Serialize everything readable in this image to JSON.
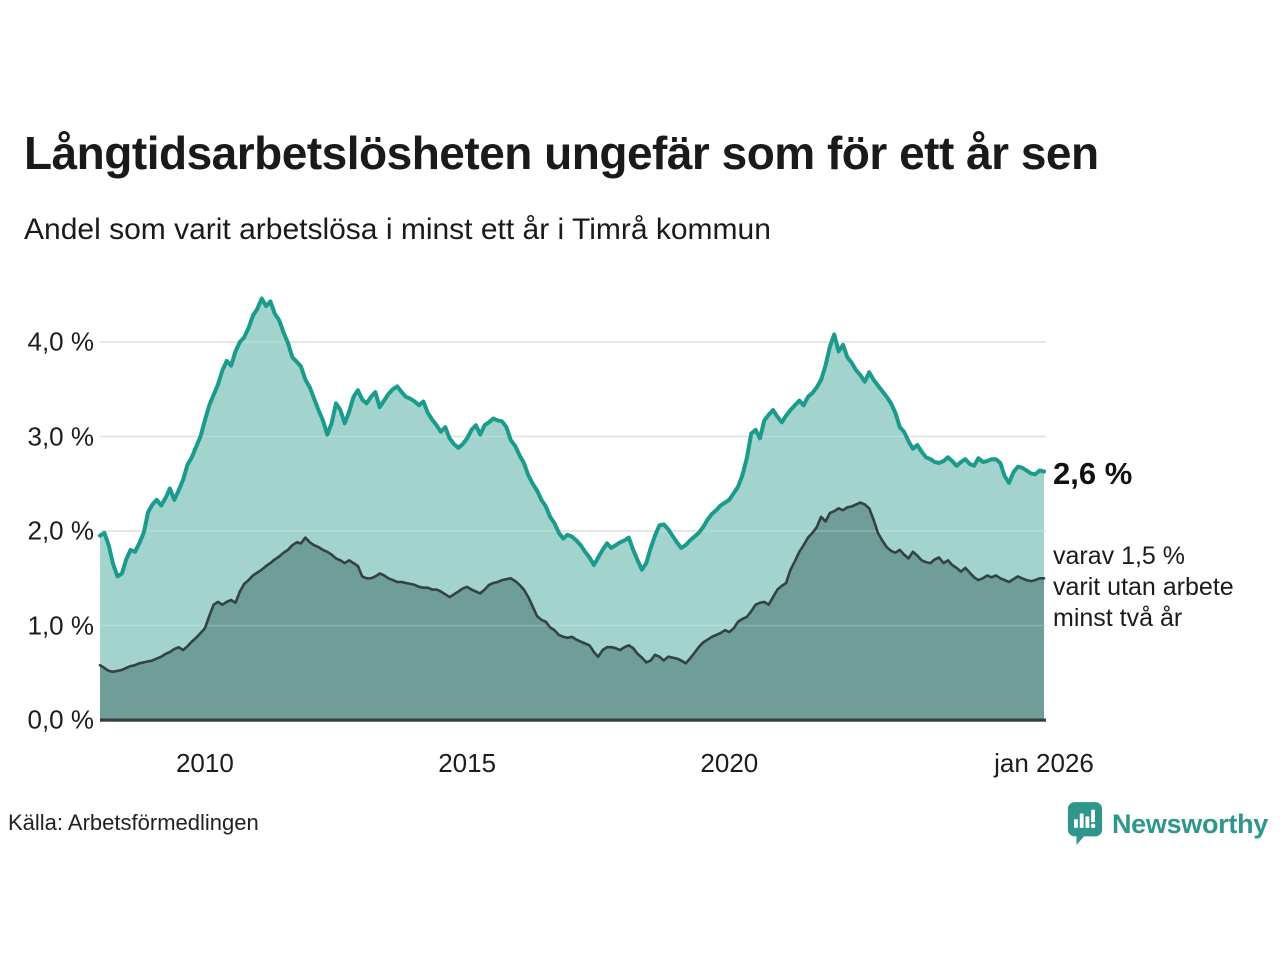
{
  "header": {
    "title": "Långtidsarbetslösheten ungefär som för ett år sen",
    "subtitle": "Andel som varit arbetslösa i minst ett år i Timrå kommun"
  },
  "chart_data": {
    "type": "area",
    "title": "Andel som varit arbetslösa i minst ett år i Timrå kommun",
    "x_start": "jan 2008",
    "x_end": "jan 2026",
    "x_resolution": "month",
    "ylim": [
      0,
      4.5
    ],
    "grid": true,
    "yticks": [
      {
        "value": 0,
        "label": "0,0 %"
      },
      {
        "value": 1,
        "label": "1,0 %"
      },
      {
        "value": 2,
        "label": "2,0 %"
      },
      {
        "value": 3,
        "label": "3,0 %"
      },
      {
        "value": 4,
        "label": "4,0 %"
      }
    ],
    "xticks": [
      {
        "month_index": 24,
        "label": "2010"
      },
      {
        "month_index": 84,
        "label": "2015"
      },
      {
        "month_index": 144,
        "label": "2020"
      },
      {
        "month_index": 216,
        "label": "jan 2026"
      }
    ],
    "series": [
      {
        "name": "Arbetslösa minst ett år",
        "line_color": "#1a9b8c",
        "fill_color": "#a2d3cc",
        "end_label": "2,6 %",
        "values": [
          1.95,
          1.98,
          1.85,
          1.65,
          1.52,
          1.55,
          1.7,
          1.8,
          1.78,
          1.87,
          1.98,
          2.2,
          2.28,
          2.33,
          2.27,
          2.35,
          2.45,
          2.33,
          2.43,
          2.54,
          2.7,
          2.78,
          2.89,
          3.0,
          3.17,
          3.33,
          3.44,
          3.55,
          3.7,
          3.8,
          3.75,
          3.9,
          4.0,
          4.05,
          4.15,
          4.28,
          4.35,
          4.46,
          4.38,
          4.43,
          4.3,
          4.23,
          4.1,
          3.99,
          3.84,
          3.79,
          3.74,
          3.6,
          3.52,
          3.4,
          3.28,
          3.17,
          3.02,
          3.14,
          3.35,
          3.28,
          3.14,
          3.26,
          3.42,
          3.49,
          3.39,
          3.35,
          3.42,
          3.47,
          3.31,
          3.38,
          3.45,
          3.5,
          3.53,
          3.47,
          3.42,
          3.4,
          3.37,
          3.33,
          3.37,
          3.25,
          3.18,
          3.12,
          3.05,
          3.1,
          2.98,
          2.92,
          2.88,
          2.92,
          2.98,
          3.07,
          3.12,
          3.02,
          3.12,
          3.15,
          3.19,
          3.17,
          3.16,
          3.1,
          2.96,
          2.9,
          2.8,
          2.72,
          2.59,
          2.5,
          2.43,
          2.33,
          2.26,
          2.15,
          2.08,
          1.98,
          1.92,
          1.96,
          1.94,
          1.9,
          1.85,
          1.78,
          1.72,
          1.64,
          1.72,
          1.8,
          1.87,
          1.82,
          1.85,
          1.88,
          1.9,
          1.93,
          1.8,
          1.69,
          1.59,
          1.66,
          1.82,
          1.95,
          2.06,
          2.07,
          2.02,
          1.95,
          1.88,
          1.82,
          1.85,
          1.9,
          1.94,
          1.98,
          2.04,
          2.12,
          2.18,
          2.22,
          2.27,
          2.3,
          2.33,
          2.4,
          2.47,
          2.59,
          2.77,
          3.03,
          3.07,
          2.98,
          3.17,
          3.23,
          3.28,
          3.21,
          3.15,
          3.22,
          3.28,
          3.33,
          3.38,
          3.33,
          3.42,
          3.46,
          3.52,
          3.6,
          3.75,
          3.95,
          4.08,
          3.9,
          3.97,
          3.84,
          3.78,
          3.7,
          3.65,
          3.58,
          3.68,
          3.6,
          3.54,
          3.48,
          3.42,
          3.35,
          3.25,
          3.1,
          3.05,
          2.95,
          2.87,
          2.91,
          2.84,
          2.78,
          2.76,
          2.73,
          2.72,
          2.74,
          2.78,
          2.74,
          2.69,
          2.73,
          2.76,
          2.71,
          2.69,
          2.77,
          2.73,
          2.74,
          2.76,
          2.76,
          2.72,
          2.58,
          2.51,
          2.62,
          2.68,
          2.67,
          2.64,
          2.61,
          2.6,
          2.64,
          2.63
        ]
      },
      {
        "name": "Utan arbete minst två år",
        "line_color": "#33433f",
        "fill_color": "#6f9e99",
        "end_label": "varav 1,5 % varit utan arbete minst två år",
        "values": [
          0.58,
          0.55,
          0.52,
          0.51,
          0.52,
          0.53,
          0.55,
          0.57,
          0.58,
          0.6,
          0.61,
          0.62,
          0.63,
          0.65,
          0.67,
          0.7,
          0.72,
          0.75,
          0.77,
          0.74,
          0.78,
          0.83,
          0.87,
          0.92,
          0.97,
          1.1,
          1.22,
          1.25,
          1.22,
          1.25,
          1.27,
          1.24,
          1.36,
          1.44,
          1.48,
          1.53,
          1.56,
          1.59,
          1.63,
          1.66,
          1.7,
          1.73,
          1.77,
          1.8,
          1.85,
          1.88,
          1.87,
          1.93,
          1.88,
          1.85,
          1.83,
          1.8,
          1.78,
          1.75,
          1.71,
          1.69,
          1.66,
          1.69,
          1.66,
          1.63,
          1.52,
          1.5,
          1.5,
          1.52,
          1.55,
          1.53,
          1.5,
          1.48,
          1.46,
          1.46,
          1.45,
          1.44,
          1.43,
          1.41,
          1.4,
          1.4,
          1.38,
          1.38,
          1.36,
          1.33,
          1.3,
          1.33,
          1.36,
          1.39,
          1.41,
          1.38,
          1.36,
          1.34,
          1.38,
          1.43,
          1.45,
          1.46,
          1.48,
          1.49,
          1.5,
          1.47,
          1.43,
          1.38,
          1.3,
          1.2,
          1.1,
          1.06,
          1.04,
          0.98,
          0.95,
          0.9,
          0.88,
          0.87,
          0.88,
          0.85,
          0.83,
          0.81,
          0.79,
          0.72,
          0.67,
          0.74,
          0.77,
          0.77,
          0.76,
          0.74,
          0.77,
          0.79,
          0.76,
          0.7,
          0.66,
          0.61,
          0.63,
          0.69,
          0.67,
          0.63,
          0.67,
          0.66,
          0.65,
          0.63,
          0.6,
          0.65,
          0.71,
          0.77,
          0.82,
          0.85,
          0.88,
          0.9,
          0.92,
          0.95,
          0.93,
          0.97,
          1.04,
          1.07,
          1.09,
          1.15,
          1.22,
          1.24,
          1.25,
          1.22,
          1.3,
          1.38,
          1.42,
          1.45,
          1.59,
          1.68,
          1.78,
          1.85,
          1.93,
          1.98,
          2.04,
          2.15,
          2.1,
          2.19,
          2.21,
          2.24,
          2.22,
          2.25,
          2.26,
          2.28,
          2.3,
          2.28,
          2.24,
          2.12,
          1.98,
          1.9,
          1.83,
          1.79,
          1.77,
          1.8,
          1.75,
          1.71,
          1.78,
          1.74,
          1.69,
          1.67,
          1.66,
          1.7,
          1.72,
          1.66,
          1.69,
          1.64,
          1.61,
          1.57,
          1.61,
          1.56,
          1.51,
          1.48,
          1.5,
          1.53,
          1.51,
          1.53,
          1.5,
          1.48,
          1.46,
          1.49,
          1.52,
          1.5,
          1.48,
          1.47,
          1.48,
          1.5,
          1.5
        ]
      }
    ]
  },
  "annotations": {
    "end_value": "2,6 %",
    "note_line1": "varav 1,5 %",
    "note_line2": "varit utan arbete",
    "note_line3": "minst två år"
  },
  "source": {
    "label": "Källa: Arbetsförmedlingen"
  },
  "branding": {
    "name": "Newsworthy",
    "color": "#2f968c"
  }
}
